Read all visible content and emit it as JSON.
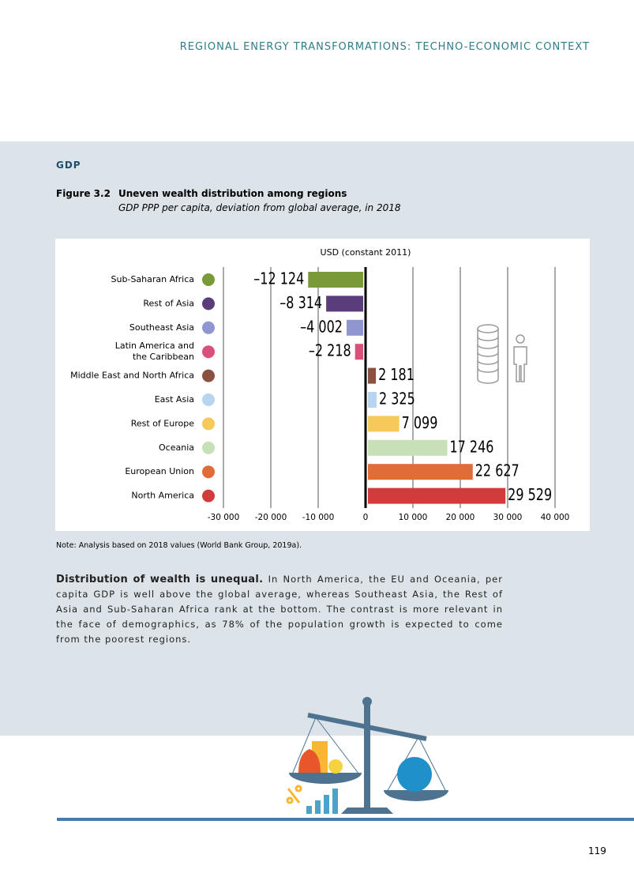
{
  "header": "REGIONAL ENERGY TRANSFORMATIONS: TECHNO-ECONOMIC CONTEXT",
  "section": "GDP",
  "figure": {
    "number": "Figure 3.2",
    "title": "Uneven wealth distribution among regions",
    "subtitle": "GDP PPP per capita, deviation from global average, in 2018"
  },
  "chart_data": {
    "type": "hbar",
    "axis_label": "USD (constant 2011)",
    "categories": [
      "Sub-Saharan Africa",
      "Rest of Asia",
      "Southeast Asia",
      "Latin America and\nthe Caribbean",
      "Middle East and North Africa",
      "East Asia",
      "Rest of Europe",
      "Oceania",
      "European Union",
      "North America"
    ],
    "values": [
      -12124,
      -8314,
      -4002,
      -2218,
      2181,
      2325,
      7099,
      17246,
      22627,
      29529
    ],
    "value_labels": [
      "–12 124",
      "–8 314",
      "–4 002",
      "–2 218",
      "2 181",
      "2 325",
      "7 099",
      "17 246",
      "22 627",
      "29 529"
    ],
    "colors": [
      "#7a9a3a",
      "#5a3d7a",
      "#8f96d0",
      "#d9507a",
      "#8a5040",
      "#b9d4ee",
      "#f7c95a",
      "#c7e0b8",
      "#e06c3a",
      "#d13b3b"
    ],
    "xlim": [
      -30000,
      40000
    ],
    "xticks": [
      {
        "value": -30000,
        "label": "-30 000"
      },
      {
        "value": -20000,
        "label": "-20 000"
      },
      {
        "value": -10000,
        "label": "-10 000"
      },
      0,
      {
        "value": 10000,
        "label": "10 000"
      },
      {
        "value": 20000,
        "label": "20 000"
      },
      {
        "value": 30000,
        "label": "30 000"
      },
      {
        "value": 40000,
        "label": "40 000"
      }
    ],
    "grid": true
  },
  "note": "Note: Analysis based on 2018 values (World Bank Group, 2019a).",
  "body": {
    "lead": "Distribution of wealth is unequal.",
    "text": " In North America, the EU and Oceania, per capita GDP is well above the global average, whereas Southeast Asia, the Rest of Asia and Sub-Saharan Africa rank at the bottom. The contrast is more relevant in the face of demographics, as 78% of the population growth is expected to come from the poorest regions."
  },
  "page_number": "119"
}
